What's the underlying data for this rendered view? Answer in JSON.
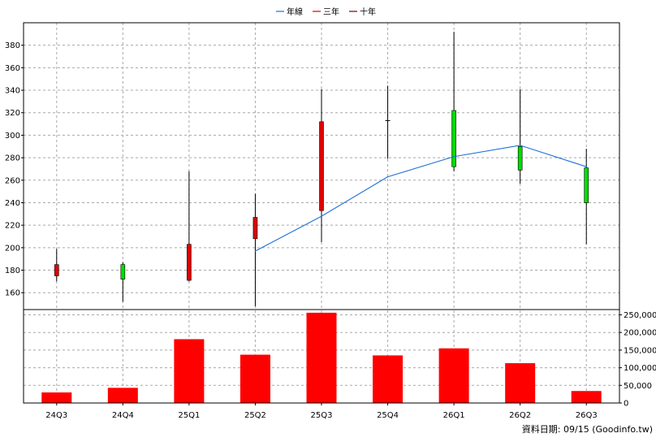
{
  "legend": [
    {
      "name": "年線",
      "color": "#1f6fd6",
      "marker": "line"
    },
    {
      "name": "三年",
      "color": "#d40000",
      "marker": "line"
    },
    {
      "name": "十年",
      "color": "#800000",
      "marker": "line"
    }
  ],
  "chart_data": [
    {
      "type": "candlestick",
      "categories": [
        "24Q3",
        "24Q4",
        "25Q1",
        "25Q2",
        "25Q3",
        "25Q4",
        "26Q1",
        "26Q2",
        "26Q3"
      ],
      "ylim": [
        145,
        400
      ],
      "yticks": [
        160,
        180,
        200,
        220,
        240,
        260,
        280,
        300,
        320,
        340,
        360,
        380
      ],
      "grid": true,
      "candles": [
        {
          "open": 175,
          "high": 199,
          "low": 170,
          "close": 185,
          "color": "red"
        },
        {
          "open": 185,
          "high": 187,
          "low": 152,
          "close": 172,
          "color": "green"
        },
        {
          "open": 171,
          "high": 268,
          "low": 170,
          "close": 203,
          "color": "red"
        },
        {
          "open": 208,
          "high": 248,
          "low": 148,
          "close": 227,
          "color": "red"
        },
        {
          "open": 233,
          "high": 341,
          "low": 205,
          "close": 312,
          "color": "red"
        },
        {
          "open": 313,
          "high": 344,
          "low": 279,
          "close": 313,
          "color": "doji"
        },
        {
          "open": 322,
          "high": 392,
          "low": 268,
          "close": 272,
          "color": "green"
        },
        {
          "open": 290,
          "high": 341,
          "low": 257,
          "close": 269,
          "color": "green"
        },
        {
          "open": 271,
          "high": 288,
          "low": 203,
          "close": 240,
          "color": "green"
        }
      ],
      "series": [
        {
          "name": "年線",
          "x": [
            "25Q2",
            "25Q3",
            "25Q4",
            "26Q1",
            "26Q2",
            "26Q3"
          ],
          "values": [
            197,
            228,
            263,
            281,
            291,
            272
          ],
          "color": "#1f6fd6"
        }
      ]
    },
    {
      "type": "bar",
      "categories": [
        "24Q3",
        "24Q4",
        "25Q1",
        "25Q2",
        "25Q3",
        "25Q4",
        "26Q1",
        "26Q2",
        "26Q3"
      ],
      "values": [
        30000,
        43000,
        181000,
        137000,
        256000,
        135000,
        155000,
        113000,
        34000
      ],
      "ylim": [
        0,
        265000
      ],
      "yticks": [
        0,
        50000,
        100000,
        150000,
        200000,
        250000
      ],
      "ytick_labels": [
        "0",
        "50,000",
        "100,000",
        "150,000",
        "200,000",
        "250,000"
      ],
      "color": "#ff0000",
      "grid": true
    }
  ],
  "footer": "資料日期: 09/15  (Goodinfo.tw)"
}
